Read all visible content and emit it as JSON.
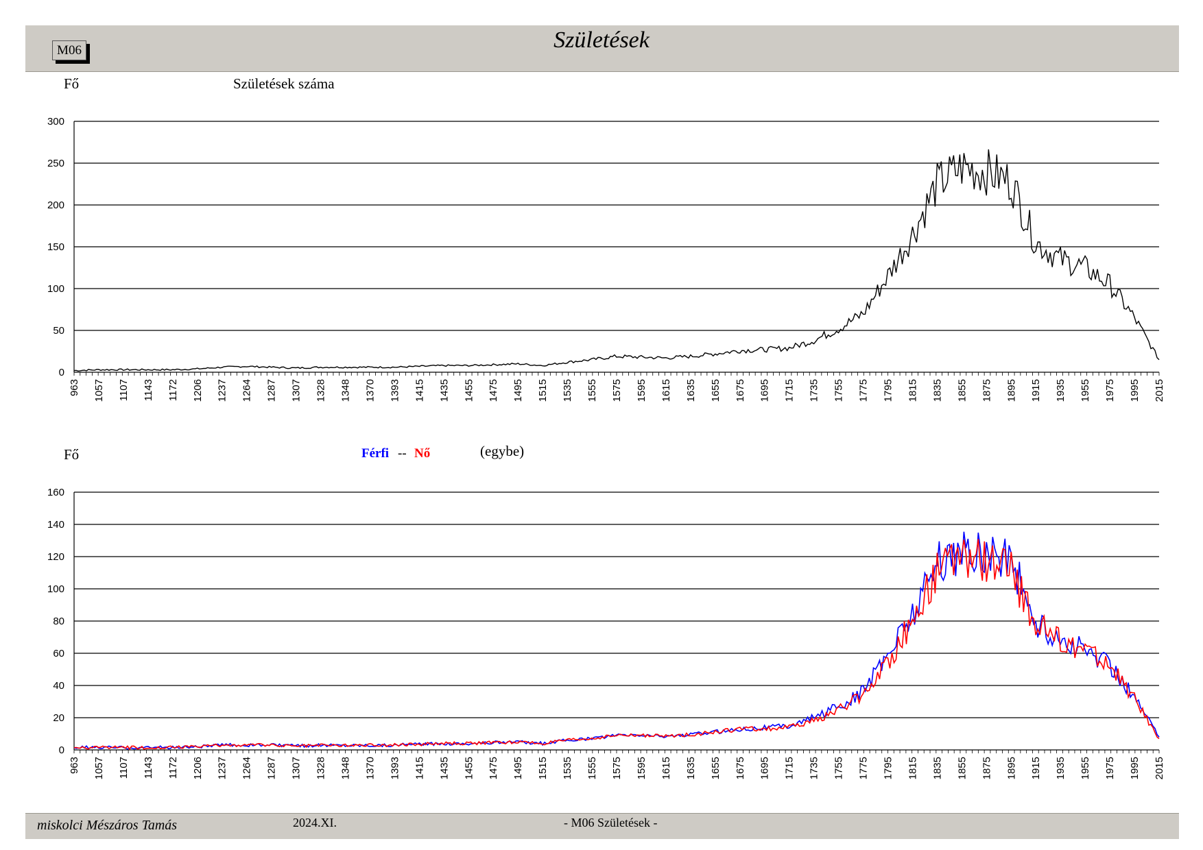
{
  "header": {
    "code": "M06",
    "title": "Születések"
  },
  "footer": {
    "author": "miskolci Mészáros Tamás",
    "date": "2024.XI.",
    "page": "- M06  Születések -"
  },
  "colors": {
    "band": "#cecbc5",
    "total": "#000000",
    "male": "#0000ff",
    "female": "#ff0000"
  },
  "chart_data": [
    {
      "type": "line",
      "title": "Születések száma",
      "ylabel": "Fő",
      "xlabel": "",
      "ylim": [
        0,
        300
      ],
      "yticks": [
        0,
        50,
        100,
        150,
        200,
        250,
        300
      ],
      "xtick_labels": [
        "963",
        "1057",
        "1107",
        "1143",
        "1172",
        "1206",
        "1237",
        "1264",
        "1287",
        "1307",
        "1328",
        "1348",
        "1370",
        "1393",
        "1415",
        "1435",
        "1455",
        "1475",
        "1495",
        "1515",
        "1535",
        "1555",
        "1575",
        "1595",
        "1615",
        "1635",
        "1655",
        "1675",
        "1695",
        "1715",
        "1735",
        "1755",
        "1775",
        "1795",
        "1815",
        "1835",
        "1855",
        "1875",
        "1895",
        "1915",
        "1935",
        "1955",
        "1975",
        "1995",
        "2015"
      ],
      "grid": true,
      "legend": "none",
      "series": [
        {
          "color": "#000000",
          "x": [
            "963",
            "1057",
            "1107",
            "1143",
            "1172",
            "1206",
            "1237",
            "1264",
            "1287",
            "1307",
            "1328",
            "1348",
            "1370",
            "1393",
            "1415",
            "1435",
            "1455",
            "1475",
            "1495",
            "1515",
            "1535",
            "1555",
            "1575",
            "1595",
            "1615",
            "1635",
            "1655",
            "1675",
            "1695",
            "1715",
            "1735",
            "1755",
            "1775",
            "1795",
            "1815",
            "1835",
            "1855",
            "1875",
            "1895",
            "1915",
            "1935",
            "1955",
            "1975",
            "1995",
            "2015"
          ],
          "values": [
            2,
            3,
            3,
            3,
            3,
            4,
            6,
            7,
            6,
            5,
            6,
            6,
            6,
            6,
            7,
            8,
            8,
            9,
            10,
            8,
            12,
            15,
            19,
            18,
            17,
            19,
            22,
            26,
            27,
            29,
            38,
            52,
            70,
            115,
            165,
            225,
            245,
            240,
            228,
            155,
            135,
            125,
            105,
            65,
            15
          ]
        }
      ]
    },
    {
      "type": "line",
      "title": "",
      "ylabel": "Fő",
      "xlabel": "",
      "ylim": [
        0,
        160
      ],
      "yticks": [
        0,
        20,
        40,
        60,
        80,
        100,
        120,
        140,
        160
      ],
      "xtick_labels": [
        "963",
        "1057",
        "1107",
        "1143",
        "1172",
        "1206",
        "1237",
        "1264",
        "1287",
        "1307",
        "1328",
        "1348",
        "1370",
        "1393",
        "1415",
        "1435",
        "1455",
        "1475",
        "1495",
        "1515",
        "1535",
        "1555",
        "1575",
        "1595",
        "1615",
        "1635",
        "1655",
        "1675",
        "1695",
        "1715",
        "1735",
        "1755",
        "1775",
        "1795",
        "1815",
        "1835",
        "1855",
        "1875",
        "1895",
        "1915",
        "1935",
        "1955",
        "1975",
        "1995",
        "2015"
      ],
      "grid": true,
      "legend": "top-center",
      "legend_text": {
        "male": "Férfi",
        "sep": "--",
        "female": "Nő",
        "note": "(egybe)"
      },
      "series": [
        {
          "name": "Férfi",
          "color": "#0000ff",
          "x": [
            "963",
            "1057",
            "1107",
            "1143",
            "1172",
            "1206",
            "1237",
            "1264",
            "1287",
            "1307",
            "1328",
            "1348",
            "1370",
            "1393",
            "1415",
            "1435",
            "1455",
            "1475",
            "1495",
            "1515",
            "1535",
            "1555",
            "1575",
            "1595",
            "1615",
            "1635",
            "1655",
            "1675",
            "1695",
            "1715",
            "1735",
            "1755",
            "1775",
            "1795",
            "1815",
            "1835",
            "1855",
            "1875",
            "1895",
            "1915",
            "1935",
            "1955",
            "1975",
            "1995",
            "2015"
          ],
          "values": [
            1.5,
            1.5,
            1.5,
            1.5,
            1.5,
            2,
            3,
            3,
            3,
            2.5,
            3,
            3,
            3,
            3,
            3.5,
            4,
            4,
            4.5,
            5,
            4,
            6,
            7,
            9,
            9,
            8.5,
            9.5,
            11,
            13,
            14,
            15,
            20,
            27,
            36,
            60,
            85,
            115,
            123,
            122,
            118,
            77,
            68,
            62,
            53,
            33,
            8
          ]
        },
        {
          "name": "Nő",
          "color": "#ff0000",
          "x": [
            "963",
            "1057",
            "1107",
            "1143",
            "1172",
            "1206",
            "1237",
            "1264",
            "1287",
            "1307",
            "1328",
            "1348",
            "1370",
            "1393",
            "1415",
            "1435",
            "1455",
            "1475",
            "1495",
            "1515",
            "1535",
            "1555",
            "1575",
            "1595",
            "1615",
            "1635",
            "1655",
            "1675",
            "1695",
            "1715",
            "1735",
            "1755",
            "1775",
            "1795",
            "1815",
            "1835",
            "1855",
            "1875",
            "1895",
            "1915",
            "1935",
            "1955",
            "1975",
            "1995",
            "2015"
          ],
          "values": [
            1,
            1.5,
            1.5,
            1.5,
            1.5,
            2,
            3,
            3,
            3,
            2.5,
            3,
            3,
            3,
            3,
            3.5,
            4,
            4,
            4.5,
            5,
            4,
            6,
            7,
            9,
            9,
            8.5,
            9.5,
            11,
            13,
            13,
            14,
            18,
            25,
            34,
            55,
            80,
            110,
            120,
            118,
            110,
            78,
            67,
            63,
            52,
            32,
            7
          ]
        }
      ]
    }
  ]
}
